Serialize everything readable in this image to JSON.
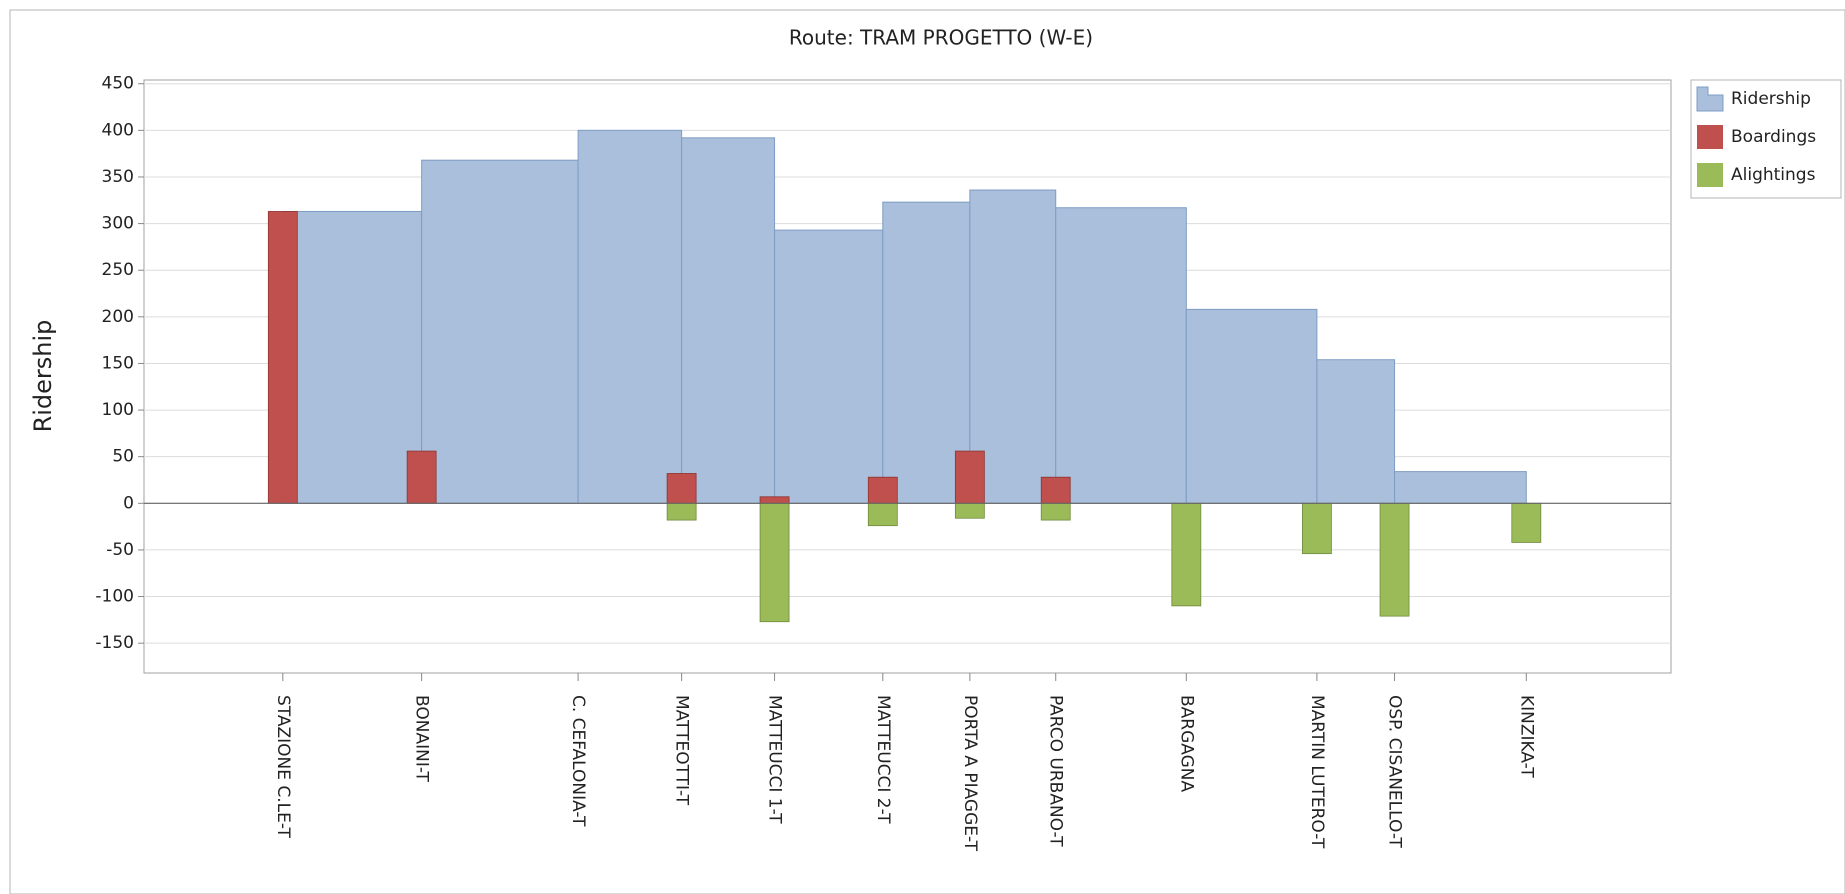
{
  "chart_data": {
    "type": "combo",
    "title": "Route: TRAM PROGETTO (W-E)",
    "y_label": "Ridership",
    "categories": [
      "STAZIONE C.LE-T",
      "BONAINI-T",
      "C. CEFALONIA-T",
      "MATTEOTTI-T",
      "MATTEUCCI 1-T",
      "MATTEUCCI 2-T",
      "PORTA A PIAGGE-T",
      "PARCO URBANO-T",
      "BARGAGNA",
      "MARTIN LUTERO-T",
      "OSP. CISANELLO-T",
      "KINZIKA-T"
    ],
    "x": [
      1.18,
      2.36,
      3.69,
      4.57,
      5.36,
      6.28,
      7.02,
      7.75,
      8.86,
      9.97,
      10.63,
      11.75
    ],
    "xlim": [
      0,
      12.98
    ],
    "series": [
      {
        "name": "Ridership",
        "type": "step-area",
        "color": "#a9bfdc",
        "values": [
          313,
          368,
          400,
          392,
          293,
          323,
          336,
          317,
          208,
          154,
          34,
          0
        ]
      },
      {
        "name": "Boardings",
        "type": "bar",
        "color": "#c0504d",
        "values": [
          313,
          56,
          0,
          32,
          7,
          28,
          56,
          28,
          0,
          0,
          0,
          0
        ]
      },
      {
        "name": "Alightings",
        "type": "bar",
        "color": "#9bbb59",
        "values": [
          0,
          0,
          0,
          -18,
          -127,
          -24,
          -16,
          -18,
          -110,
          -54,
          -121,
          -42
        ]
      }
    ],
    "ylim": [
      -182,
      454
    ],
    "yticks": [
      -150,
      -100,
      -50,
      0,
      50,
      100,
      150,
      200,
      250,
      300,
      350,
      400,
      450
    ],
    "grid": true,
    "legend": "right"
  }
}
